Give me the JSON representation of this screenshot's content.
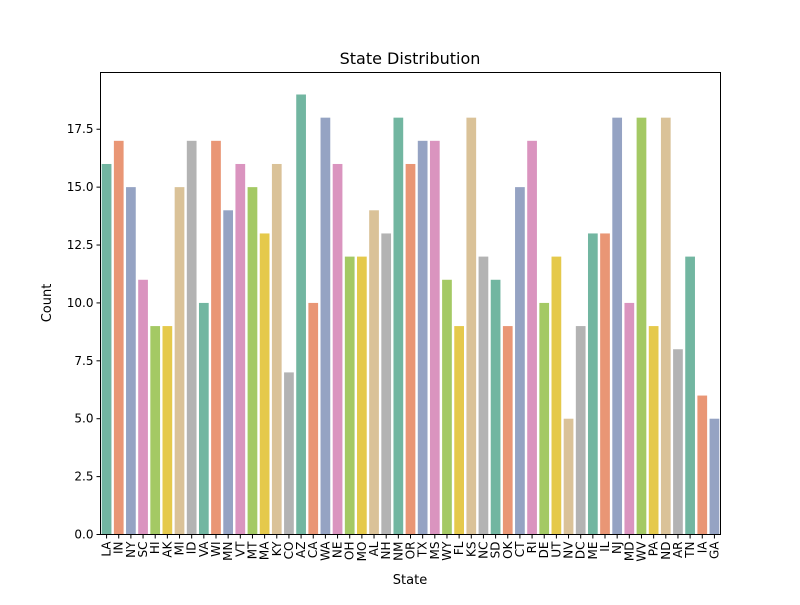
{
  "chart_data": {
    "type": "bar",
    "title": "State Distribution",
    "xlabel": "State",
    "ylabel": "Count",
    "ylim": [
      0,
      19.95
    ],
    "yticks": [
      "0.0",
      "2.5",
      "5.0",
      "7.5",
      "10.0",
      "12.5",
      "15.0",
      "17.5"
    ],
    "grid": false,
    "palette": [
      "#72b6a1",
      "#e99675",
      "#95a3c3",
      "#da94bf",
      "#a4c964",
      "#e5c94b",
      "#dac298",
      "#b3b3b3"
    ],
    "categories": [
      "LA",
      "IN",
      "NY",
      "SC",
      "HI",
      "AK",
      "MI",
      "ID",
      "VA",
      "WI",
      "MN",
      "VT",
      "MT",
      "MA",
      "KY",
      "CO",
      "AZ",
      "CA",
      "WA",
      "NE",
      "OH",
      "MO",
      "AL",
      "NH",
      "NM",
      "OR",
      "TX",
      "MS",
      "WY",
      "FL",
      "KS",
      "NC",
      "SD",
      "OK",
      "CT",
      "RI",
      "DE",
      "UT",
      "NV",
      "DC",
      "ME",
      "IL",
      "NJ",
      "MD",
      "WV",
      "PA",
      "ND",
      "AR",
      "TN",
      "IA",
      "GA"
    ],
    "values": [
      16,
      17,
      15,
      11,
      9,
      9,
      15,
      17,
      10,
      17,
      14,
      16,
      15,
      13,
      16,
      7,
      19,
      10,
      18,
      16,
      12,
      12,
      14,
      13,
      18,
      16,
      17,
      17,
      11,
      9,
      18,
      12,
      11,
      9,
      15,
      17,
      10,
      12,
      5,
      9,
      13,
      13,
      18,
      10,
      18,
      9,
      18,
      8,
      12,
      6,
      5
    ]
  }
}
